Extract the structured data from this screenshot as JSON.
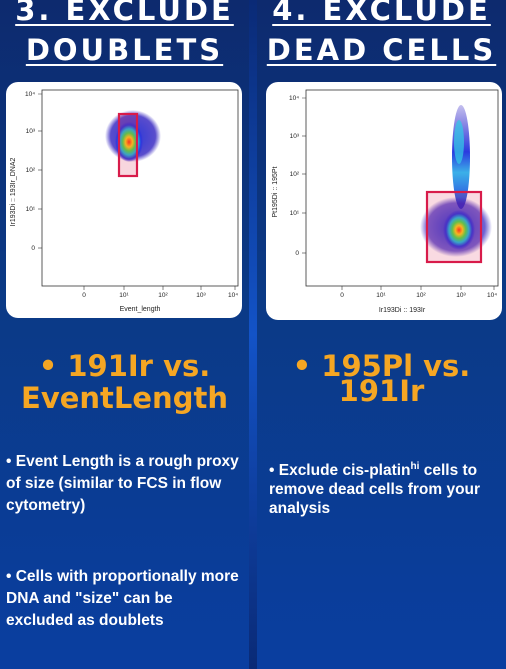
{
  "left": {
    "title_line1": "3. EXCLUDE",
    "title_line2": "DOUBLETS",
    "plot": {
      "y_axis_label": "Ir193Di :: 193Ir_DNA2",
      "x_axis_label": "Event_length",
      "y_ticks": [
        "10⁴",
        "10³",
        "10²",
        "10¹",
        "0"
      ],
      "x_ticks": [
        "0",
        "10¹",
        "10²",
        "10³",
        "10⁴"
      ]
    },
    "subhead_line1": "• 191Ir vs.",
    "subhead_line2": "EventLength",
    "bullet1": "• Event Length is a rough proxy of size (similar to FCS in flow cytometry)",
    "bullet2": "• Cells with proportionally more DNA  and \"size\" can be excluded as doublets"
  },
  "right": {
    "title_line1": "4. EXCLUDE",
    "title_line2": "DEAD CELLS",
    "plot": {
      "y_axis_label": "Pt195Di :: 195Pt",
      "x_axis_label": "Ir193Di :: 193Ir",
      "y_ticks": [
        "10⁴",
        "10³",
        "10²",
        "10¹",
        "0"
      ],
      "x_ticks": [
        "0",
        "10¹",
        "10²",
        "10³",
        "10⁴"
      ]
    },
    "subhead_line1": "• 195Pl vs.",
    "subhead_line2": "191Ir",
    "bullet1_pre": "• Exclude cis-platin",
    "bullet1_sup": "hi",
    "bullet1_post": " cells to remove dead cells from your analysis"
  },
  "colors": {
    "gate": "#d81b4a",
    "subhead": "#f5a623",
    "background": "#0b3a86"
  }
}
